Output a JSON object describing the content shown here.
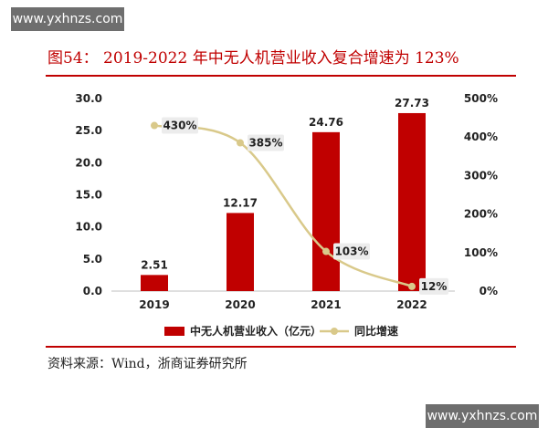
{
  "watermark": {
    "top": "www.yxhnzs.com",
    "bottom": "www.yxhnzs.com"
  },
  "figure": {
    "title": "图54： 2019-2022 年中无人机营业收入复合增速为 123%",
    "source": "资料来源：Wind，浙商证券研究所"
  },
  "chart_data": {
    "type": "bar",
    "categories": [
      "2019",
      "2020",
      "2021",
      "2022"
    ],
    "series": [
      {
        "name": "中无人机营业收入（亿元）",
        "type": "bar",
        "axis": "left",
        "values": [
          2.51,
          12.17,
          24.76,
          27.73
        ],
        "labels": [
          "2.51",
          "12.17",
          "24.76",
          "27.73"
        ],
        "color": "#c00000"
      },
      {
        "name": "同比增速",
        "type": "line",
        "axis": "right",
        "values": [
          430,
          385,
          103,
          12
        ],
        "labels": [
          "430%",
          "385%",
          "103%",
          "12%"
        ],
        "color": "#d9c98a"
      }
    ],
    "left_axis": {
      "min": 0,
      "max": 30,
      "ticks": [
        "0.0",
        "5.0",
        "10.0",
        "15.0",
        "20.0",
        "25.0",
        "30.0"
      ]
    },
    "right_axis": {
      "min": 0,
      "max": 500,
      "ticks": [
        "0%",
        "100%",
        "200%",
        "300%",
        "400%",
        "500%"
      ]
    },
    "grid": false,
    "legend": "bottom"
  }
}
